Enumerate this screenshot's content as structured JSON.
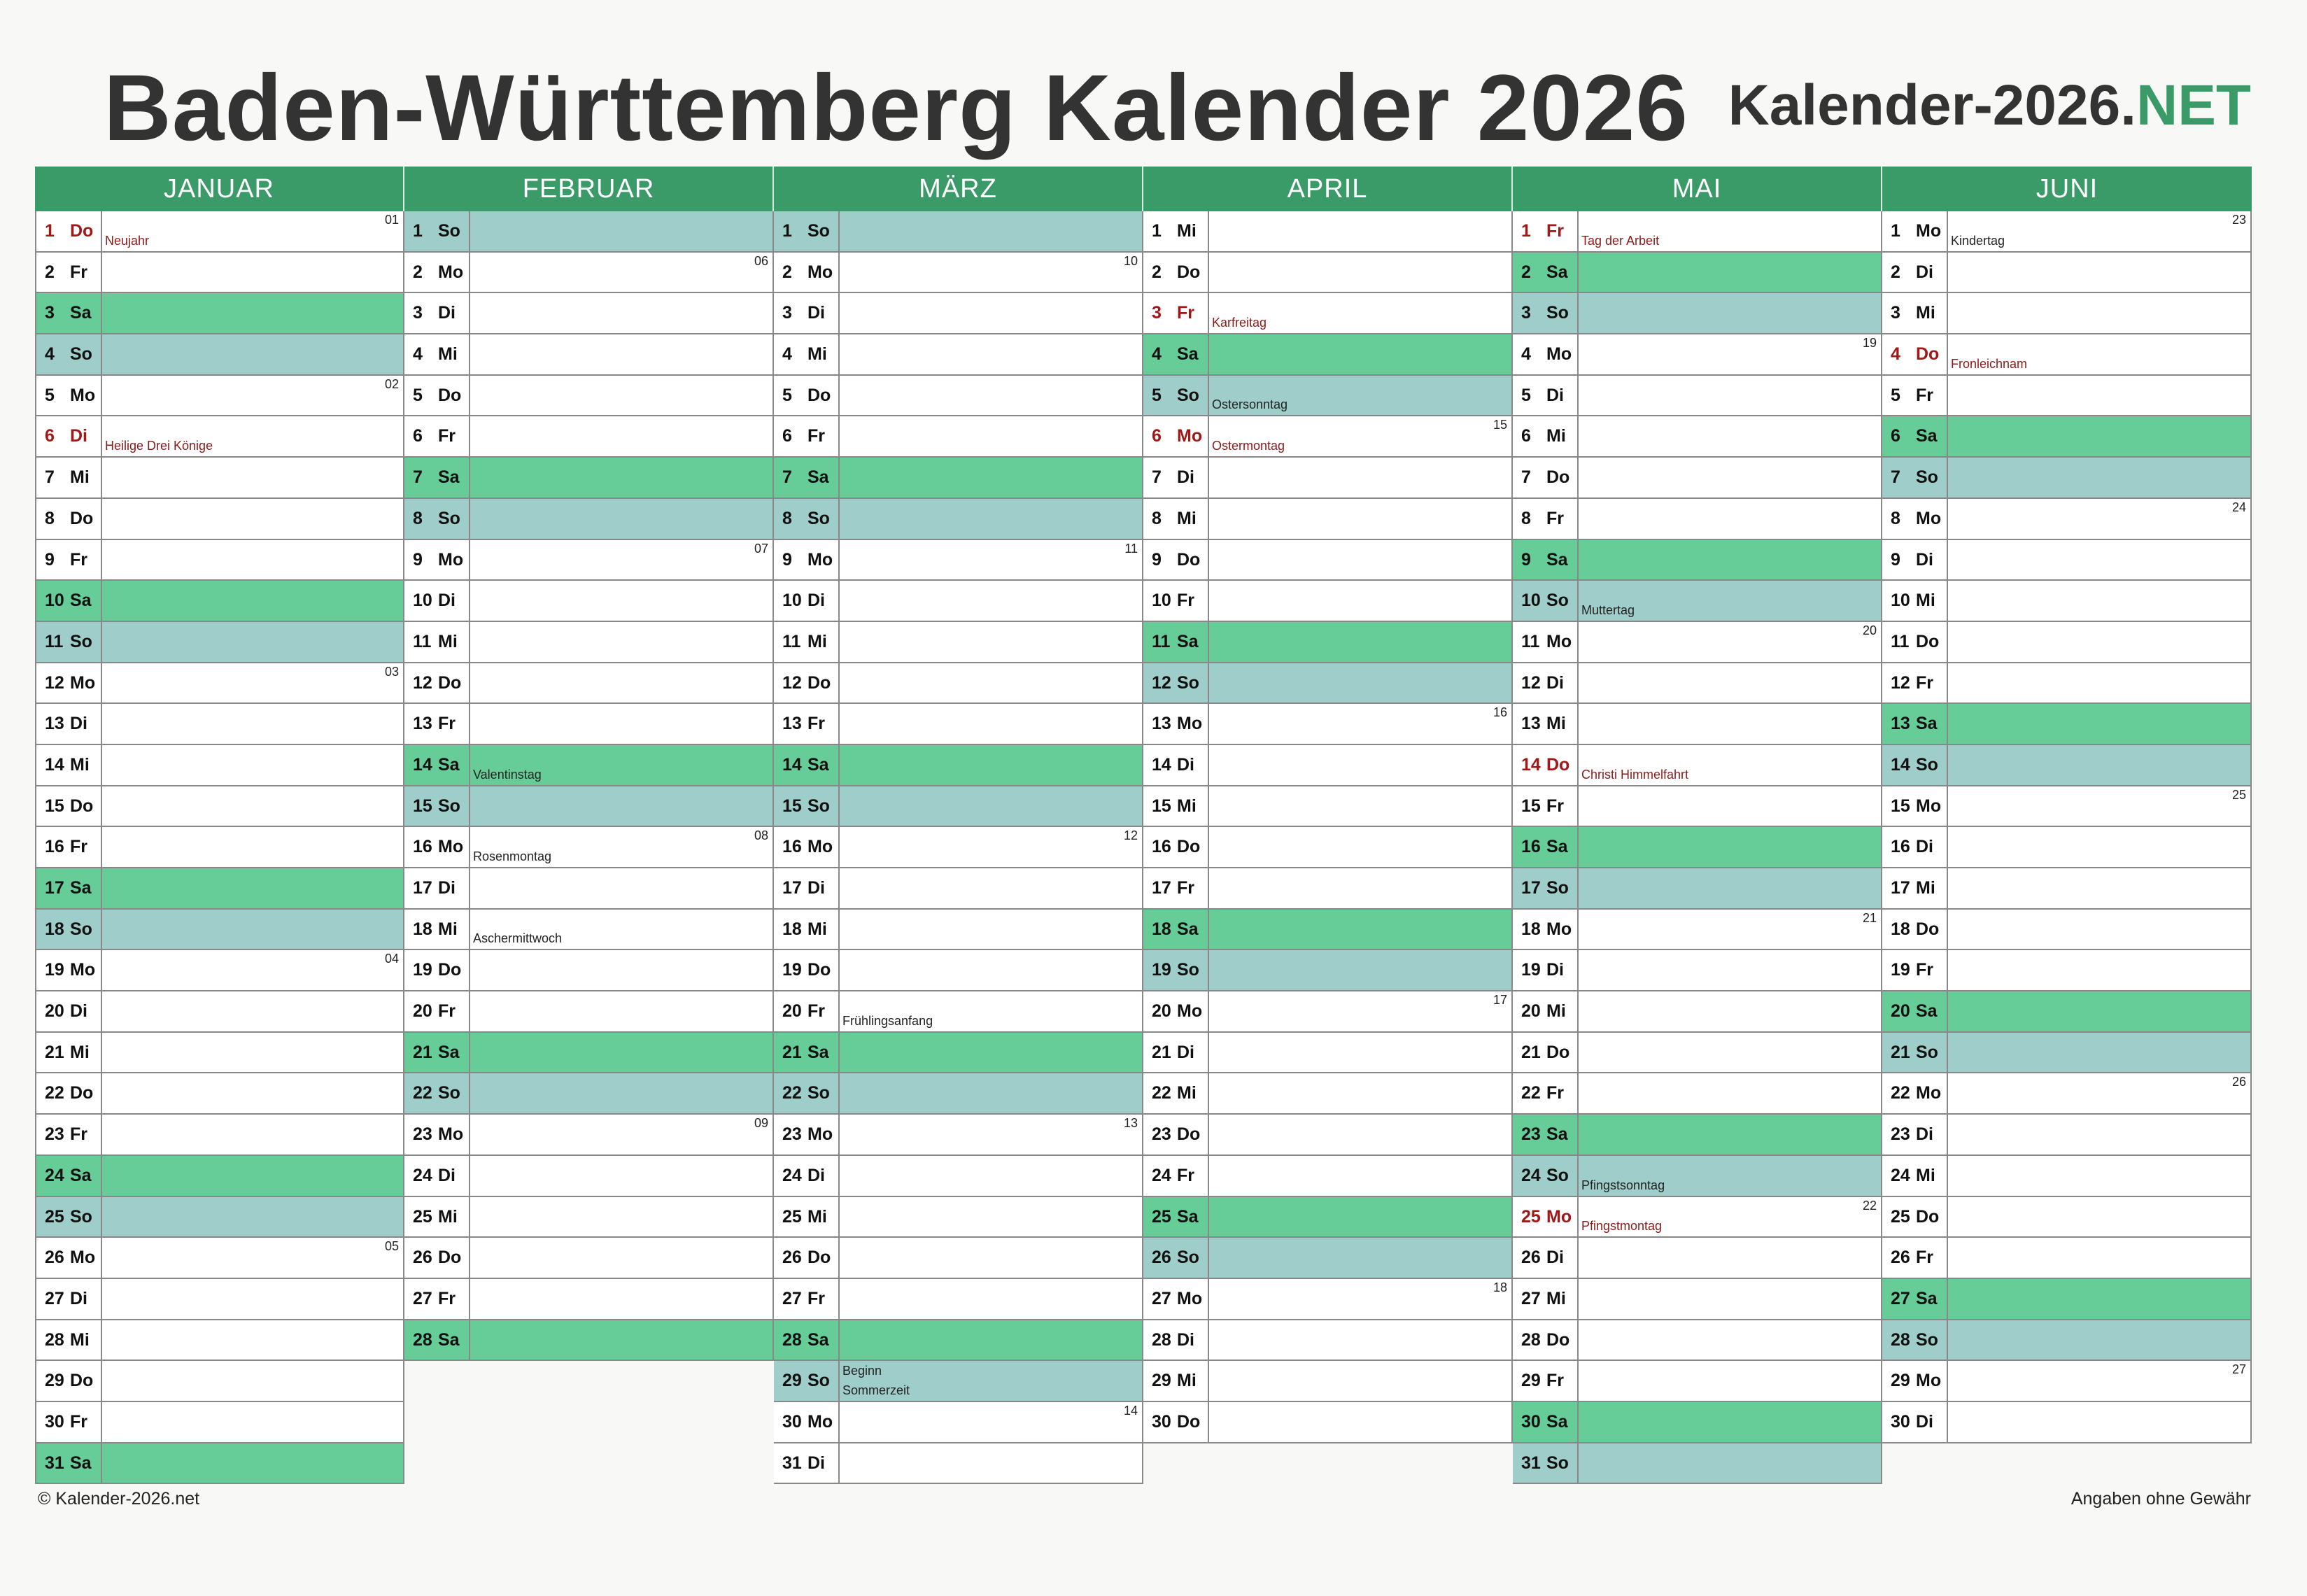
{
  "title": "Baden-Württemberg Kalender 2026",
  "brand": {
    "main": "Kalender-2026.",
    "tld": "NET"
  },
  "colors": {
    "header": "#3a9b68",
    "saturday": "#66cd99",
    "sunday": "#9fcdc9",
    "holiday_text": "#a01818"
  },
  "footer": {
    "left": "© Kalender-2026.net",
    "right": "Angaben ohne Gewähr"
  },
  "months": [
    {
      "name": "JANUAR",
      "days": [
        {
          "d": "1",
          "wd": "Do",
          "note": "Neujahr",
          "holiday": true,
          "kw": "01"
        },
        {
          "d": "2",
          "wd": "Fr"
        },
        {
          "d": "3",
          "wd": "Sa"
        },
        {
          "d": "4",
          "wd": "So"
        },
        {
          "d": "5",
          "wd": "Mo",
          "kw": "02"
        },
        {
          "d": "6",
          "wd": "Di",
          "note": "Heilige Drei Könige",
          "holiday": true
        },
        {
          "d": "7",
          "wd": "Mi"
        },
        {
          "d": "8",
          "wd": "Do"
        },
        {
          "d": "9",
          "wd": "Fr"
        },
        {
          "d": "10",
          "wd": "Sa"
        },
        {
          "d": "11",
          "wd": "So"
        },
        {
          "d": "12",
          "wd": "Mo",
          "kw": "03"
        },
        {
          "d": "13",
          "wd": "Di"
        },
        {
          "d": "14",
          "wd": "Mi"
        },
        {
          "d": "15",
          "wd": "Do"
        },
        {
          "d": "16",
          "wd": "Fr"
        },
        {
          "d": "17",
          "wd": "Sa"
        },
        {
          "d": "18",
          "wd": "So"
        },
        {
          "d": "19",
          "wd": "Mo",
          "kw": "04"
        },
        {
          "d": "20",
          "wd": "Di"
        },
        {
          "d": "21",
          "wd": "Mi"
        },
        {
          "d": "22",
          "wd": "Do"
        },
        {
          "d": "23",
          "wd": "Fr"
        },
        {
          "d": "24",
          "wd": "Sa"
        },
        {
          "d": "25",
          "wd": "So"
        },
        {
          "d": "26",
          "wd": "Mo",
          "kw": "05"
        },
        {
          "d": "27",
          "wd": "Di"
        },
        {
          "d": "28",
          "wd": "Mi"
        },
        {
          "d": "29",
          "wd": "Do"
        },
        {
          "d": "30",
          "wd": "Fr"
        },
        {
          "d": "31",
          "wd": "Sa"
        }
      ]
    },
    {
      "name": "FEBRUAR",
      "days": [
        {
          "d": "1",
          "wd": "So"
        },
        {
          "d": "2",
          "wd": "Mo",
          "kw": "06"
        },
        {
          "d": "3",
          "wd": "Di"
        },
        {
          "d": "4",
          "wd": "Mi"
        },
        {
          "d": "5",
          "wd": "Do"
        },
        {
          "d": "6",
          "wd": "Fr"
        },
        {
          "d": "7",
          "wd": "Sa"
        },
        {
          "d": "8",
          "wd": "So"
        },
        {
          "d": "9",
          "wd": "Mo",
          "kw": "07"
        },
        {
          "d": "10",
          "wd": "Di"
        },
        {
          "d": "11",
          "wd": "Mi"
        },
        {
          "d": "12",
          "wd": "Do"
        },
        {
          "d": "13",
          "wd": "Fr"
        },
        {
          "d": "14",
          "wd": "Sa",
          "note": "Valentinstag"
        },
        {
          "d": "15",
          "wd": "So"
        },
        {
          "d": "16",
          "wd": "Mo",
          "note": "Rosenmontag",
          "kw": "08"
        },
        {
          "d": "17",
          "wd": "Di"
        },
        {
          "d": "18",
          "wd": "Mi",
          "note": "Aschermittwoch"
        },
        {
          "d": "19",
          "wd": "Do"
        },
        {
          "d": "20",
          "wd": "Fr"
        },
        {
          "d": "21",
          "wd": "Sa"
        },
        {
          "d": "22",
          "wd": "So"
        },
        {
          "d": "23",
          "wd": "Mo",
          "kw": "09"
        },
        {
          "d": "24",
          "wd": "Di"
        },
        {
          "d": "25",
          "wd": "Mi"
        },
        {
          "d": "26",
          "wd": "Do"
        },
        {
          "d": "27",
          "wd": "Fr"
        },
        {
          "d": "28",
          "wd": "Sa"
        }
      ]
    },
    {
      "name": "MÄRZ",
      "days": [
        {
          "d": "1",
          "wd": "So"
        },
        {
          "d": "2",
          "wd": "Mo",
          "kw": "10"
        },
        {
          "d": "3",
          "wd": "Di"
        },
        {
          "d": "4",
          "wd": "Mi"
        },
        {
          "d": "5",
          "wd": "Do"
        },
        {
          "d": "6",
          "wd": "Fr"
        },
        {
          "d": "7",
          "wd": "Sa"
        },
        {
          "d": "8",
          "wd": "So"
        },
        {
          "d": "9",
          "wd": "Mo",
          "kw": "11"
        },
        {
          "d": "10",
          "wd": "Di"
        },
        {
          "d": "11",
          "wd": "Mi"
        },
        {
          "d": "12",
          "wd": "Do"
        },
        {
          "d": "13",
          "wd": "Fr"
        },
        {
          "d": "14",
          "wd": "Sa"
        },
        {
          "d": "15",
          "wd": "So"
        },
        {
          "d": "16",
          "wd": "Mo",
          "kw": "12"
        },
        {
          "d": "17",
          "wd": "Di"
        },
        {
          "d": "18",
          "wd": "Mi"
        },
        {
          "d": "19",
          "wd": "Do"
        },
        {
          "d": "20",
          "wd": "Fr",
          "note": "Frühlingsanfang"
        },
        {
          "d": "21",
          "wd": "Sa"
        },
        {
          "d": "22",
          "wd": "So"
        },
        {
          "d": "23",
          "wd": "Mo",
          "kw": "13"
        },
        {
          "d": "24",
          "wd": "Di"
        },
        {
          "d": "25",
          "wd": "Mi"
        },
        {
          "d": "26",
          "wd": "Do"
        },
        {
          "d": "27",
          "wd": "Fr"
        },
        {
          "d": "28",
          "wd": "Sa"
        },
        {
          "d": "29",
          "wd": "So",
          "note": "Beginn",
          "note2": "Sommerzeit"
        },
        {
          "d": "30",
          "wd": "Mo",
          "kw": "14"
        },
        {
          "d": "31",
          "wd": "Di"
        }
      ]
    },
    {
      "name": "APRIL",
      "days": [
        {
          "d": "1",
          "wd": "Mi"
        },
        {
          "d": "2",
          "wd": "Do"
        },
        {
          "d": "3",
          "wd": "Fr",
          "note": "Karfreitag",
          "holiday": true
        },
        {
          "d": "4",
          "wd": "Sa"
        },
        {
          "d": "5",
          "wd": "So",
          "note": "Ostersonntag"
        },
        {
          "d": "6",
          "wd": "Mo",
          "note": "Ostermontag",
          "holiday": true,
          "kw": "15"
        },
        {
          "d": "7",
          "wd": "Di"
        },
        {
          "d": "8",
          "wd": "Mi"
        },
        {
          "d": "9",
          "wd": "Do"
        },
        {
          "d": "10",
          "wd": "Fr"
        },
        {
          "d": "11",
          "wd": "Sa"
        },
        {
          "d": "12",
          "wd": "So"
        },
        {
          "d": "13",
          "wd": "Mo",
          "kw": "16"
        },
        {
          "d": "14",
          "wd": "Di"
        },
        {
          "d": "15",
          "wd": "Mi"
        },
        {
          "d": "16",
          "wd": "Do"
        },
        {
          "d": "17",
          "wd": "Fr"
        },
        {
          "d": "18",
          "wd": "Sa"
        },
        {
          "d": "19",
          "wd": "So"
        },
        {
          "d": "20",
          "wd": "Mo",
          "kw": "17"
        },
        {
          "d": "21",
          "wd": "Di"
        },
        {
          "d": "22",
          "wd": "Mi"
        },
        {
          "d": "23",
          "wd": "Do"
        },
        {
          "d": "24",
          "wd": "Fr"
        },
        {
          "d": "25",
          "wd": "Sa"
        },
        {
          "d": "26",
          "wd": "So"
        },
        {
          "d": "27",
          "wd": "Mo",
          "kw": "18"
        },
        {
          "d": "28",
          "wd": "Di"
        },
        {
          "d": "29",
          "wd": "Mi"
        },
        {
          "d": "30",
          "wd": "Do"
        }
      ]
    },
    {
      "name": "MAI",
      "days": [
        {
          "d": "1",
          "wd": "Fr",
          "note": "Tag der Arbeit",
          "holiday": true
        },
        {
          "d": "2",
          "wd": "Sa"
        },
        {
          "d": "3",
          "wd": "So"
        },
        {
          "d": "4",
          "wd": "Mo",
          "kw": "19"
        },
        {
          "d": "5",
          "wd": "Di"
        },
        {
          "d": "6",
          "wd": "Mi"
        },
        {
          "d": "7",
          "wd": "Do"
        },
        {
          "d": "8",
          "wd": "Fr"
        },
        {
          "d": "9",
          "wd": "Sa"
        },
        {
          "d": "10",
          "wd": "So",
          "note": "Muttertag"
        },
        {
          "d": "11",
          "wd": "Mo",
          "kw": "20"
        },
        {
          "d": "12",
          "wd": "Di"
        },
        {
          "d": "13",
          "wd": "Mi"
        },
        {
          "d": "14",
          "wd": "Do",
          "note": "Christi Himmelfahrt",
          "holiday": true
        },
        {
          "d": "15",
          "wd": "Fr"
        },
        {
          "d": "16",
          "wd": "Sa"
        },
        {
          "d": "17",
          "wd": "So"
        },
        {
          "d": "18",
          "wd": "Mo",
          "kw": "21"
        },
        {
          "d": "19",
          "wd": "Di"
        },
        {
          "d": "20",
          "wd": "Mi"
        },
        {
          "d": "21",
          "wd": "Do"
        },
        {
          "d": "22",
          "wd": "Fr"
        },
        {
          "d": "23",
          "wd": "Sa"
        },
        {
          "d": "24",
          "wd": "So",
          "note": "Pfingstsonntag"
        },
        {
          "d": "25",
          "wd": "Mo",
          "note": "Pfingstmontag",
          "holiday": true,
          "kw": "22"
        },
        {
          "d": "26",
          "wd": "Di"
        },
        {
          "d": "27",
          "wd": "Mi"
        },
        {
          "d": "28",
          "wd": "Do"
        },
        {
          "d": "29",
          "wd": "Fr"
        },
        {
          "d": "30",
          "wd": "Sa"
        },
        {
          "d": "31",
          "wd": "So"
        }
      ]
    },
    {
      "name": "JUNI",
      "days": [
        {
          "d": "1",
          "wd": "Mo",
          "note": "Kindertag",
          "kw": "23"
        },
        {
          "d": "2",
          "wd": "Di"
        },
        {
          "d": "3",
          "wd": "Mi"
        },
        {
          "d": "4",
          "wd": "Do",
          "note": "Fronleichnam",
          "holiday": true
        },
        {
          "d": "5",
          "wd": "Fr"
        },
        {
          "d": "6",
          "wd": "Sa"
        },
        {
          "d": "7",
          "wd": "So"
        },
        {
          "d": "8",
          "wd": "Mo",
          "kw": "24"
        },
        {
          "d": "9",
          "wd": "Di"
        },
        {
          "d": "10",
          "wd": "Mi"
        },
        {
          "d": "11",
          "wd": "Do"
        },
        {
          "d": "12",
          "wd": "Fr"
        },
        {
          "d": "13",
          "wd": "Sa"
        },
        {
          "d": "14",
          "wd": "So"
        },
        {
          "d": "15",
          "wd": "Mo",
          "kw": "25"
        },
        {
          "d": "16",
          "wd": "Di"
        },
        {
          "d": "17",
          "wd": "Mi"
        },
        {
          "d": "18",
          "wd": "Do"
        },
        {
          "d": "19",
          "wd": "Fr"
        },
        {
          "d": "20",
          "wd": "Sa"
        },
        {
          "d": "21",
          "wd": "So"
        },
        {
          "d": "22",
          "wd": "Mo",
          "kw": "26"
        },
        {
          "d": "23",
          "wd": "Di"
        },
        {
          "d": "24",
          "wd": "Mi"
        },
        {
          "d": "25",
          "wd": "Do"
        },
        {
          "d": "26",
          "wd": "Fr"
        },
        {
          "d": "27",
          "wd": "Sa"
        },
        {
          "d": "28",
          "wd": "So"
        },
        {
          "d": "29",
          "wd": "Mo",
          "kw": "27"
        },
        {
          "d": "30",
          "wd": "Di"
        }
      ]
    }
  ]
}
